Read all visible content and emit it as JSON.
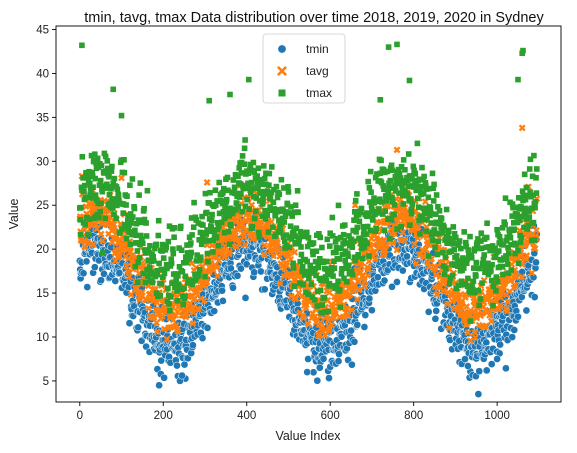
{
  "chart_data": {
    "type": "scatter",
    "title": "tmin, tavg, tmax Data distribution over time 2018, 2019, 2020 in Sydney",
    "xlabel": "Value Index",
    "ylabel": "Value",
    "xlim": [
      -57,
      1153
    ],
    "ylim": [
      2.6,
      45.4
    ],
    "xticks": [
      0,
      200,
      400,
      600,
      800,
      1000
    ],
    "yticks": [
      5,
      10,
      15,
      20,
      25,
      30,
      35,
      40,
      45
    ],
    "grid": false,
    "legend_position": "top-center",
    "n_points": 1096,
    "series": [
      {
        "name": "tmin",
        "color": "#1f77b4",
        "marker": "circle",
        "seasonal_model": {
          "mean": 14.6,
          "amplitude": 5.6,
          "peak_index": 405,
          "period_days": 365,
          "noise_sd": 1.7
        },
        "extremes": [
          [
            190,
            4.5
          ],
          [
            240,
            5.0
          ],
          [
            245,
            5.6
          ],
          [
            545,
            6.0
          ],
          [
            575,
            6.5
          ],
          [
            930,
            6.7
          ],
          [
            975,
            6.2
          ],
          [
            1000,
            7.5
          ]
        ]
      },
      {
        "name": "tavg",
        "color": "#ff7f0e",
        "marker": "x",
        "seasonal_model": {
          "mean": 18.4,
          "amplitude": 5.2,
          "peak_index": 405,
          "period_days": 365,
          "noise_sd": 1.6
        },
        "extremes": [
          [
            5,
            28.3
          ],
          [
            100,
            28.1
          ],
          [
            305,
            27.6
          ],
          [
            660,
            25.0
          ],
          [
            760,
            31.3
          ],
          [
            1060,
            33.8
          ],
          [
            1075,
            27.1
          ],
          [
            580,
            11.0
          ],
          [
            930,
            10.5
          ]
        ]
      },
      {
        "name": "tmax",
        "color": "#2ca02c",
        "marker": "square",
        "seasonal_model": {
          "mean": 22.3,
          "amplitude": 4.8,
          "peak_index": 405,
          "period_days": 365,
          "noise_sd": 2.3
        },
        "extremes": [
          [
            5,
            43.2
          ],
          [
            80,
            38.2
          ],
          [
            100,
            35.2
          ],
          [
            405,
            39.3
          ],
          [
            740,
            43.0
          ],
          [
            760,
            43.3
          ],
          [
            790,
            39.2
          ],
          [
            1060,
            42.3
          ],
          [
            1062,
            42.6
          ],
          [
            1050,
            39.3
          ],
          [
            720,
            37.0
          ],
          [
            360,
            37.6
          ],
          [
            310,
            36.9
          ]
        ]
      }
    ]
  }
}
